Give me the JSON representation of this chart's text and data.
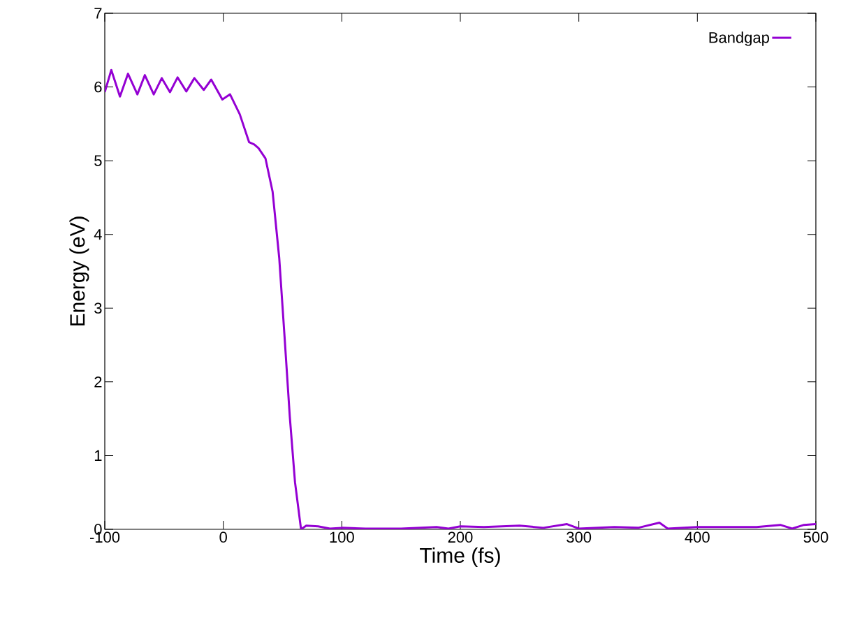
{
  "chart_data": {
    "type": "line",
    "xlabel": "Time (fs)",
    "ylabel": "Energy (eV)",
    "xlim": [
      -100,
      500
    ],
    "ylim": [
      0,
      7
    ],
    "xticks": [
      -100,
      0,
      100,
      200,
      300,
      400,
      500
    ],
    "yticks": [
      0,
      1,
      2,
      3,
      4,
      5,
      6,
      7
    ],
    "grid": false,
    "legend": "top right",
    "series": [
      {
        "name": "Bandgap",
        "color": "#9400d3",
        "x": [
          -100,
          -94.5,
          -87.2,
          -80.4,
          -72.5,
          -66.2,
          -58.7,
          -51.9,
          -45,
          -38.6,
          -31.2,
          -24.4,
          -16.5,
          -10.2,
          -0.8,
          5.7,
          13.9,
          21.8,
          26.1,
          29.7,
          35.6,
          41.6,
          47.2,
          51.7,
          56.1,
          60.5,
          65.6,
          70,
          80,
          90,
          100,
          120,
          150,
          180,
          190,
          200,
          220,
          250,
          270,
          290,
          300,
          330,
          350,
          368,
          375,
          400,
          450,
          470,
          480,
          490,
          500
        ],
        "values": [
          5.93,
          6.23,
          5.87,
          6.18,
          5.9,
          6.16,
          5.9,
          6.12,
          5.93,
          6.13,
          5.94,
          6.12,
          5.96,
          6.1,
          5.83,
          5.9,
          5.63,
          5.25,
          5.22,
          5.17,
          5.03,
          4.58,
          3.68,
          2.61,
          1.53,
          0.64,
          0,
          0.05,
          0.04,
          0.01,
          0.02,
          0.01,
          0.01,
          0.03,
          0.01,
          0.04,
          0.03,
          0.05,
          0.02,
          0.07,
          0.01,
          0.03,
          0.02,
          0.09,
          0.01,
          0.03,
          0.03,
          0.06,
          0.01,
          0.06,
          0.07
        ]
      }
    ]
  }
}
